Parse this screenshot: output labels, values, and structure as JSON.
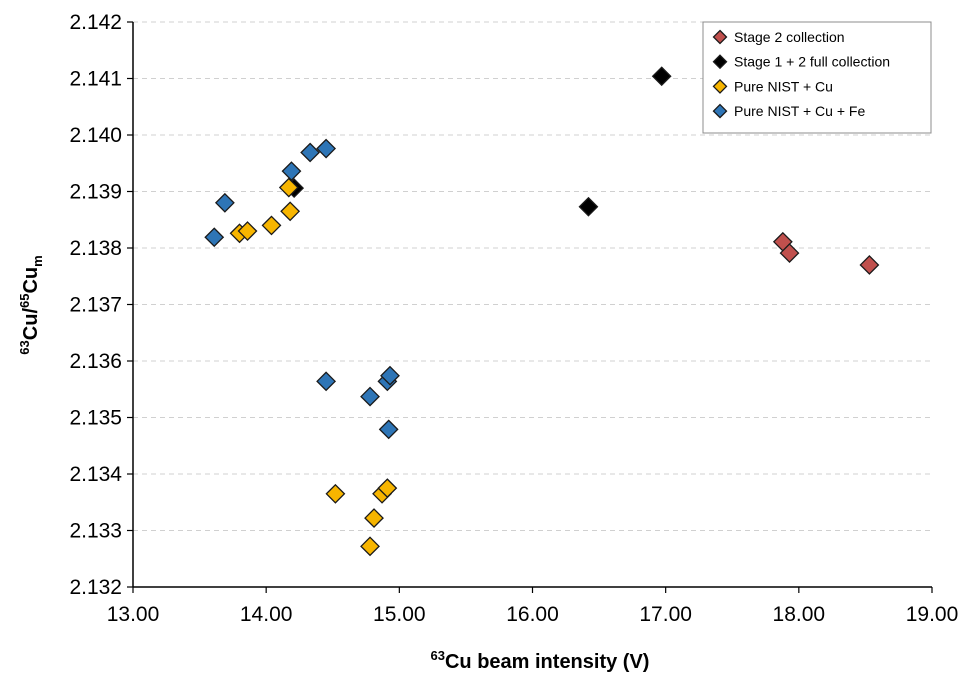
{
  "chart_data": {
    "type": "scatter",
    "xlabel": "Cu beam intensity (V)",
    "xlabel_sup": "63",
    "ylabel_parts": {
      "sup1": "63",
      "base1": "Cu/",
      "sup2": "65",
      "base2": "Cu",
      "sub": "m"
    },
    "xlim": [
      13.0,
      19.0
    ],
    "ylim": [
      2.132,
      2.142
    ],
    "x_ticks": [
      "13.00",
      "14.00",
      "15.00",
      "16.00",
      "17.00",
      "18.00",
      "19.00"
    ],
    "y_ticks": [
      "2.132",
      "2.133",
      "2.134",
      "2.135",
      "2.136",
      "2.137",
      "2.138",
      "2.139",
      "2.140",
      "2.141",
      "2.142"
    ],
    "grid": "horizontal dashed",
    "legend_position": "top-right",
    "series": [
      {
        "name": "Stage 2 collection",
        "color": "#c0504d",
        "marker": "diamond",
        "points": [
          [
            17.88,
            2.13811
          ],
          [
            17.93,
            2.13791
          ],
          [
            18.53,
            2.1377
          ]
        ]
      },
      {
        "name": "Stage 1 + 2 full collection",
        "color": "#000000",
        "marker": "diamond",
        "points": [
          [
            16.97,
            2.14104
          ],
          [
            16.42,
            2.13873
          ],
          [
            14.21,
            2.13906
          ]
        ]
      },
      {
        "name": "Pure NIST + Cu",
        "color": "#f7b500",
        "marker": "diamond",
        "points": [
          [
            13.8,
            2.13826
          ],
          [
            13.86,
            2.1383
          ],
          [
            14.04,
            2.1384
          ],
          [
            14.18,
            2.13865
          ],
          [
            14.17,
            2.13907
          ],
          [
            14.52,
            2.13365
          ],
          [
            14.81,
            2.13322
          ],
          [
            14.78,
            2.13272
          ],
          [
            14.87,
            2.13365
          ],
          [
            14.91,
            2.13375
          ]
        ]
      },
      {
        "name": "Pure NIST + Cu + Fe",
        "color": "#2e75b6",
        "marker": "diamond",
        "points": [
          [
            13.61,
            2.13819
          ],
          [
            13.69,
            2.1388
          ],
          [
            14.19,
            2.13936
          ],
          [
            14.33,
            2.13969
          ],
          [
            14.45,
            2.13976
          ],
          [
            14.45,
            2.13564
          ],
          [
            14.78,
            2.13537
          ],
          [
            14.91,
            2.13564
          ],
          [
            14.93,
            2.13574
          ],
          [
            14.92,
            2.13479
          ]
        ]
      }
    ]
  }
}
